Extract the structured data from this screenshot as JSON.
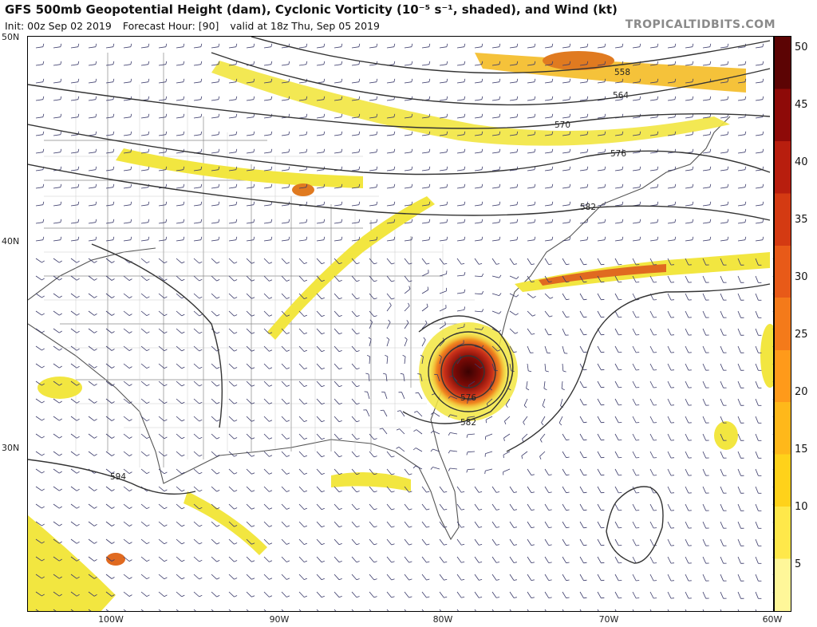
{
  "header": {
    "title": "GFS 500mb Geopotential Height (dam), Cyclonic Vorticity (10⁻⁵ s⁻¹, shaded), and Wind (kt)",
    "init": "Init: 00z Sep 02 2019",
    "forecast_hour": "Forecast Hour: [90]",
    "valid": "valid at 18z Thu, Sep 05 2019",
    "brand": "TROPICALTIDBITS.COM"
  },
  "axes": {
    "lat_labels": [
      "50N",
      "40N",
      "30N"
    ],
    "lon_labels": [
      "100W",
      "90W",
      "80W",
      "70W",
      "60W"
    ]
  },
  "contours": {
    "labels": [
      "558",
      "564",
      "570",
      "576",
      "582",
      "576",
      "582",
      "594"
    ]
  },
  "colorbar": {
    "labels": [
      "50",
      "45",
      "40",
      "35",
      "30",
      "25",
      "20",
      "15",
      "10",
      "5"
    ],
    "colors": [
      "#fff799",
      "#ffe84a",
      "#ffd21a",
      "#ffb81a",
      "#ff9a1a",
      "#f47a1a",
      "#e85a18",
      "#d43a12",
      "#b81e0e",
      "#8e0a08",
      "#5c0404"
    ]
  },
  "colors": {
    "vort_low": "#f2e640",
    "vort_mid": "#f5a623",
    "vort_high": "#d8341a",
    "vort_peak": "#5c0404",
    "contour": "#333333",
    "barb": "#3a3a6a",
    "border": "#777777"
  }
}
